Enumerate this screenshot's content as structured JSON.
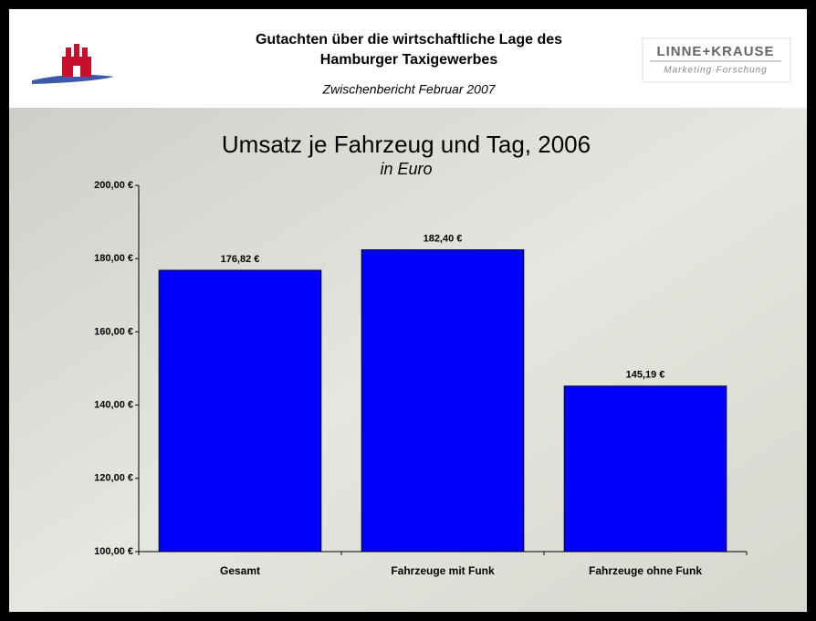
{
  "header": {
    "title_lines": [
      "Gutachten über die wirtschaftliche Lage des",
      "Hamburger Taxigewerbes"
    ],
    "subtitle": "Zwischenbericht Februar 2007",
    "logo_name": "LINNE+KRAUSE",
    "logo_tagline": "Marketing·Forschung"
  },
  "chart_data": {
    "type": "bar",
    "title": "Umsatz je Fahrzeug und Tag, 2006",
    "subtitle": "in Euro",
    "categories": [
      "Gesamt",
      "Fahrzeuge mit Funk",
      "Fahrzeuge ohne Funk"
    ],
    "values": [
      176.82,
      182.4,
      145.19
    ],
    "value_labels": [
      "176,82 €",
      "182,40 €",
      "145,19 €"
    ],
    "color": "#0000ff",
    "ylim": [
      100,
      200
    ],
    "yticks": [
      {
        "value": 100,
        "label": "100,00 €"
      },
      {
        "value": 120,
        "label": "120,00 €"
      },
      {
        "value": 140,
        "label": "140,00 €"
      },
      {
        "value": 160,
        "label": "160,00 €"
      },
      {
        "value": 180,
        "label": "180,00 €"
      },
      {
        "value": 200,
        "label": "200,00 €"
      }
    ],
    "grid": false
  }
}
